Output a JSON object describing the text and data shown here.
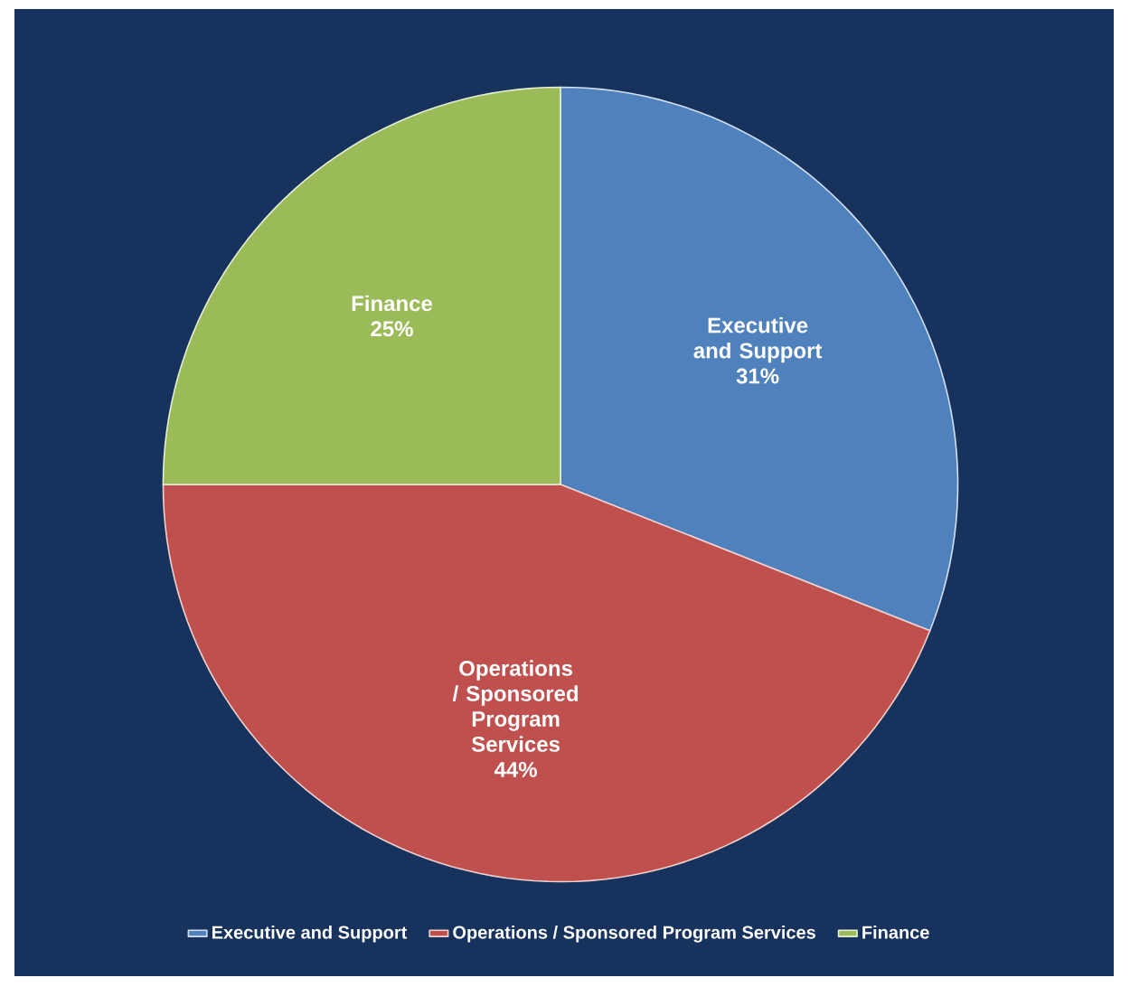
{
  "chart_data": {
    "type": "pie",
    "categories": [
      "Executive and Support",
      "Operations / Sponsored Program Services",
      "Finance"
    ],
    "values": [
      31,
      44,
      25
    ],
    "value_labels": [
      "31%",
      "44%",
      "25%"
    ],
    "colors": [
      "#4f81bd",
      "#c0504d",
      "#9bbb59"
    ],
    "legend": "bottom"
  }
}
